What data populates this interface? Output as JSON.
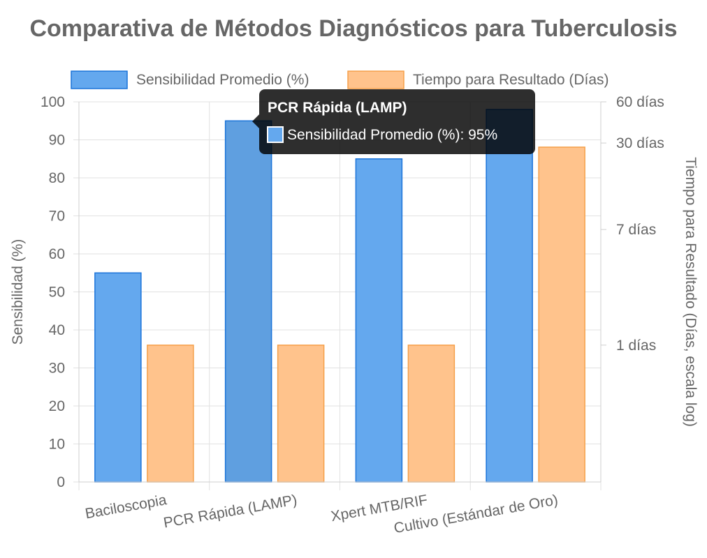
{
  "chart_data": {
    "type": "bar",
    "title": "Comparativa de Métodos Diagnósticos para Tuberculosis",
    "categories": [
      "Baciloscopia",
      "PCR Rápida (LAMP)",
      "Xpert MTB/RIF",
      "Cultivo (Estándar de Oro)"
    ],
    "series": [
      {
        "name": "Sensibilidad Promedio (%)",
        "axis": "left",
        "values": [
          55,
          95,
          85,
          98
        ],
        "color": "#64a8ee",
        "border_color": "#1a73d9"
      },
      {
        "name": "Tiempo para Resultado (Días)",
        "axis": "right",
        "values": [
          1,
          1,
          1,
          28
        ],
        "color": "#ffc38c",
        "border_color": "#f5a04a"
      }
    ],
    "y_left": {
      "label": "Sensibilidad (%)",
      "min": 0,
      "max": 100,
      "ticks": [
        0,
        10,
        20,
        30,
        40,
        50,
        60,
        70,
        80,
        90,
        100
      ]
    },
    "y_right": {
      "label": "Tiempo para Resultado (Días, escala log)",
      "scale": "log",
      "min": 0.1,
      "max": 60,
      "tick_values": [
        1,
        7,
        30,
        60
      ],
      "tick_labels": [
        "1 días",
        "7 días",
        "30 días",
        "60 días"
      ]
    },
    "xlabel": "",
    "grid": true,
    "legend_position": "top-center",
    "tooltip": {
      "category_index": 1,
      "title": "PCR Rápida (LAMP)",
      "body": "Sensibilidad Promedio (%): 95%"
    }
  }
}
